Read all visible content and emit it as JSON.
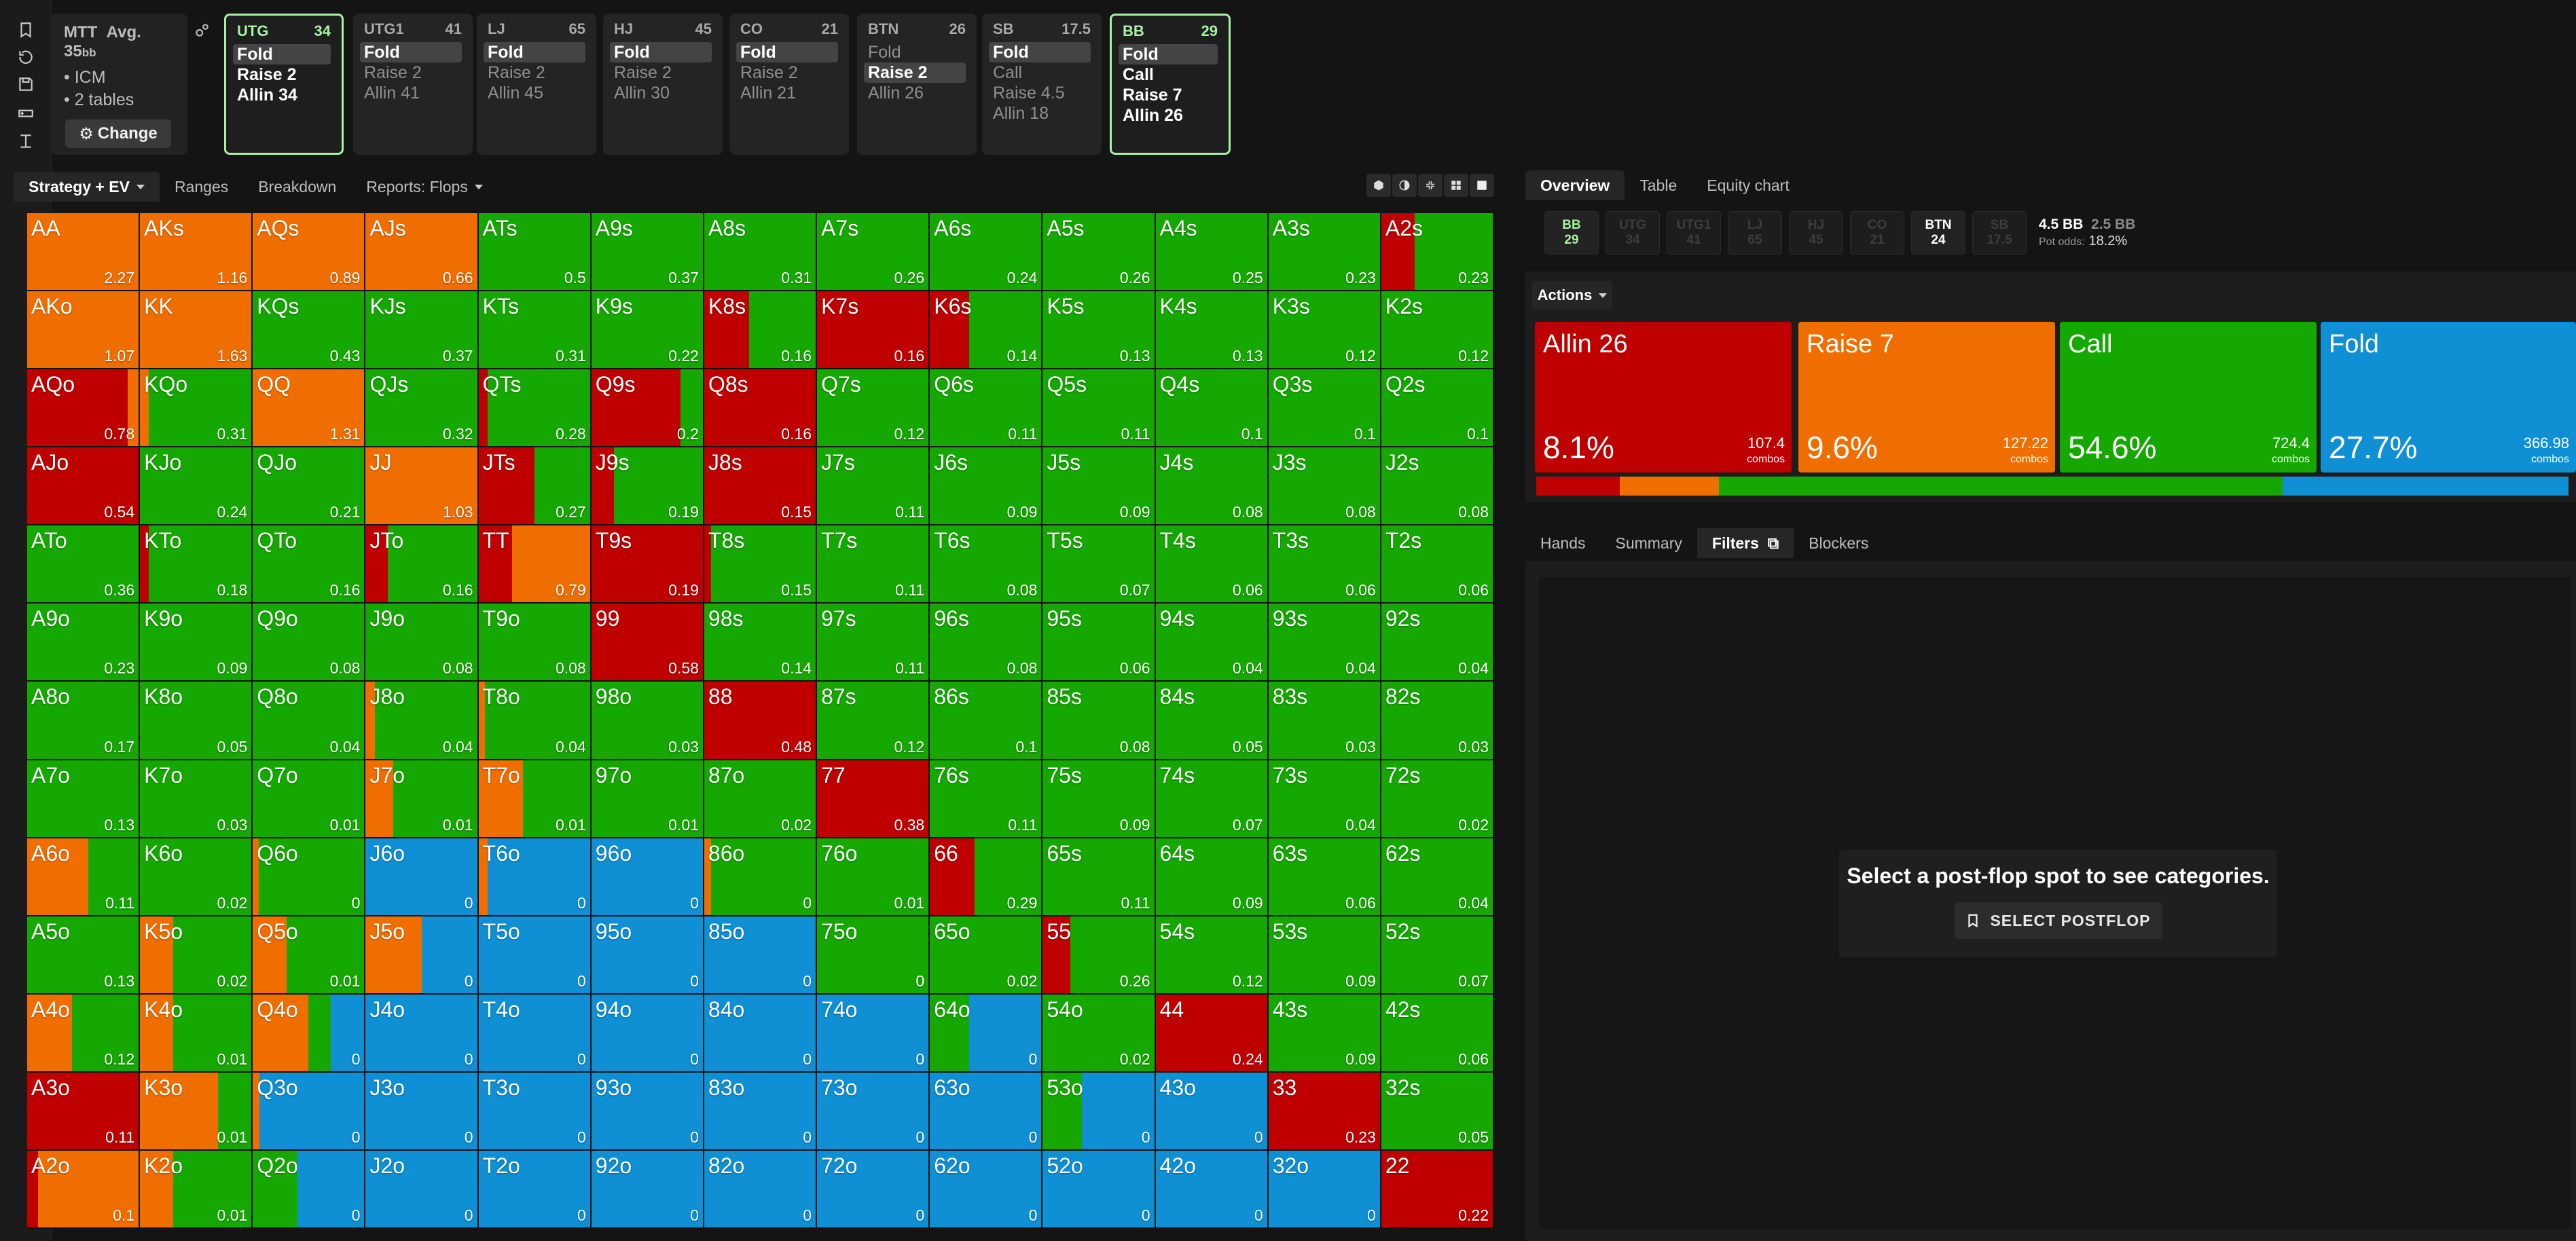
{
  "rail_icons": [
    "bookmark-icon",
    "history-icon",
    "save-icon",
    "gamepad-icon",
    "text-cursor-icon"
  ],
  "info": {
    "format": "MTT",
    "avg_label": "Avg. 35",
    "avg_unit": "bb",
    "items": [
      "ICM",
      "2 tables"
    ],
    "change_label": "Change"
  },
  "positions": [
    {
      "name": "UTG",
      "stack": "34",
      "actions": [
        "Fold",
        "Raise 2",
        "Allin 34"
      ],
      "selected": true
    },
    {
      "name": "UTG1",
      "stack": "41",
      "actions": [
        "Fold",
        "Raise 2",
        "Allin 41"
      ],
      "chosen": "Fold"
    },
    {
      "name": "LJ",
      "stack": "65",
      "actions": [
        "Fold",
        "Raise 2",
        "Allin 45"
      ],
      "chosen": "Fold"
    },
    {
      "name": "HJ",
      "stack": "45",
      "actions": [
        "Fold",
        "Raise 2",
        "Allin 30"
      ],
      "chosen": "Fold"
    },
    {
      "name": "CO",
      "stack": "21",
      "actions": [
        "Fold",
        "Raise 2",
        "Allin 21"
      ],
      "chosen": "Fold"
    },
    {
      "name": "BTN",
      "stack": "26",
      "actions": [
        "Fold",
        "Raise 2",
        "Allin 26"
      ],
      "chosen": "Raise 2"
    },
    {
      "name": "SB",
      "stack": "17.5",
      "actions": [
        "Fold",
        "Call",
        "Raise 4.5",
        "Allin 18"
      ],
      "chosen": "Fold"
    },
    {
      "name": "BB",
      "stack": "29",
      "actions": [
        "Fold",
        "Call",
        "Raise 7",
        "Allin 26"
      ],
      "selected": true
    }
  ],
  "left_tabs": [
    "Strategy + EV",
    "Ranges",
    "Breakdown",
    "Reports: Flops"
  ],
  "colors": {
    "allin": "#bf0000",
    "raise": "#f06d00",
    "call": "#14a800",
    "fold": "#0f8fd4",
    "selected_border": "#a6f3a2"
  },
  "grid": [
    [
      [
        "AA",
        "2.27",
        "O"
      ],
      [
        "AKs",
        "1.16",
        "O"
      ],
      [
        "AQs",
        "0.89",
        "O"
      ],
      [
        "AJs",
        "0.66",
        "O"
      ],
      [
        "ATs",
        "0.5",
        "C"
      ],
      [
        "A9s",
        "0.37",
        "C"
      ],
      [
        "A8s",
        "0.31",
        "C"
      ],
      [
        "A7s",
        "0.26",
        "C"
      ],
      [
        "A6s",
        "0.24",
        "C"
      ],
      [
        "A5s",
        "0.26",
        "C"
      ],
      [
        "A4s",
        "0.25",
        "C"
      ],
      [
        "A3s",
        "0.23",
        "C"
      ],
      [
        "A2s",
        "0.23",
        "R30C70"
      ]
    ],
    [
      [
        "AKo",
        "1.07",
        "O"
      ],
      [
        "KK",
        "1.63",
        "O"
      ],
      [
        "KQs",
        "0.43",
        "C"
      ],
      [
        "KJs",
        "0.37",
        "C"
      ],
      [
        "KTs",
        "0.31",
        "C"
      ],
      [
        "K9s",
        "0.22",
        "C"
      ],
      [
        "K8s",
        "0.16",
        "R40C60"
      ],
      [
        "K7s",
        "0.16",
        "R100"
      ],
      [
        "K6s",
        "0.14",
        "R35C65"
      ],
      [
        "K5s",
        "0.13",
        "C"
      ],
      [
        "K4s",
        "0.13",
        "C"
      ],
      [
        "K3s",
        "0.12",
        "C"
      ],
      [
        "K2s",
        "0.12",
        "C"
      ]
    ],
    [
      [
        "AQo",
        "0.78",
        "R90O10"
      ],
      [
        "KQo",
        "0.31",
        "O8C92"
      ],
      [
        "QQ",
        "1.31",
        "O"
      ],
      [
        "QJs",
        "0.32",
        "C"
      ],
      [
        "QTs",
        "0.28",
        "R8C92"
      ],
      [
        "Q9s",
        "0.2",
        "R80C20"
      ],
      [
        "Q8s",
        "0.16",
        "R100"
      ],
      [
        "Q7s",
        "0.12",
        "C"
      ],
      [
        "Q6s",
        "0.11",
        "C"
      ],
      [
        "Q5s",
        "0.11",
        "C"
      ],
      [
        "Q4s",
        "0.1",
        "C"
      ],
      [
        "Q3s",
        "0.1",
        "C"
      ],
      [
        "Q2s",
        "0.1",
        "C"
      ]
    ],
    [
      [
        "AJo",
        "0.54",
        "R100"
      ],
      [
        "KJo",
        "0.24",
        "C"
      ],
      [
        "QJo",
        "0.21",
        "C"
      ],
      [
        "JJ",
        "1.03",
        "O"
      ],
      [
        "JTs",
        "0.27",
        "R50C50"
      ],
      [
        "J9s",
        "0.19",
        "R20C80"
      ],
      [
        "J8s",
        "0.15",
        "R100"
      ],
      [
        "J7s",
        "0.11",
        "C"
      ],
      [
        "J6s",
        "0.09",
        "C"
      ],
      [
        "J5s",
        "0.09",
        "C"
      ],
      [
        "J4s",
        "0.08",
        "C"
      ],
      [
        "J3s",
        "0.08",
        "C"
      ],
      [
        "J2s",
        "0.08",
        "C"
      ]
    ],
    [
      [
        "ATo",
        "0.36",
        "C"
      ],
      [
        "KTo",
        "0.18",
        "R8C92"
      ],
      [
        "QTo",
        "0.16",
        "C"
      ],
      [
        "JTo",
        "0.16",
        "R20C80"
      ],
      [
        "TT",
        "0.79",
        "R30O70"
      ],
      [
        "T9s",
        "0.19",
        "R100"
      ],
      [
        "T8s",
        "0.15",
        "R6C94"
      ],
      [
        "T7s",
        "0.11",
        "C"
      ],
      [
        "T6s",
        "0.08",
        "C"
      ],
      [
        "T5s",
        "0.07",
        "C"
      ],
      [
        "T4s",
        "0.06",
        "C"
      ],
      [
        "T3s",
        "0.06",
        "C"
      ],
      [
        "T2s",
        "0.06",
        "C"
      ]
    ],
    [
      [
        "A9o",
        "0.23",
        "C"
      ],
      [
        "K9o",
        "0.09",
        "C"
      ],
      [
        "Q9o",
        "0.08",
        "C"
      ],
      [
        "J9o",
        "0.08",
        "C"
      ],
      [
        "T9o",
        "0.08",
        "C"
      ],
      [
        "99",
        "0.58",
        "R100"
      ],
      [
        "98s",
        "0.14",
        "C"
      ],
      [
        "97s",
        "0.11",
        "C"
      ],
      [
        "96s",
        "0.08",
        "C"
      ],
      [
        "95s",
        "0.06",
        "C"
      ],
      [
        "94s",
        "0.04",
        "C"
      ],
      [
        "93s",
        "0.04",
        "C"
      ],
      [
        "92s",
        "0.04",
        "C"
      ]
    ],
    [
      [
        "A8o",
        "0.17",
        "C"
      ],
      [
        "K8o",
        "0.05",
        "C"
      ],
      [
        "Q8o",
        "0.04",
        "C"
      ],
      [
        "J8o",
        "0.04",
        "O8C92"
      ],
      [
        "T8o",
        "0.04",
        "O6C94"
      ],
      [
        "98o",
        "0.03",
        "C"
      ],
      [
        "88",
        "0.48",
        "R100"
      ],
      [
        "87s",
        "0.12",
        "C"
      ],
      [
        "86s",
        "0.1",
        "C"
      ],
      [
        "85s",
        "0.08",
        "C"
      ],
      [
        "84s",
        "0.05",
        "C"
      ],
      [
        "83s",
        "0.03",
        "C"
      ],
      [
        "82s",
        "0.03",
        "C"
      ]
    ],
    [
      [
        "A7o",
        "0.13",
        "C"
      ],
      [
        "K7o",
        "0.03",
        "C"
      ],
      [
        "Q7o",
        "0.01",
        "C"
      ],
      [
        "J7o",
        "0.01",
        "O25C75"
      ],
      [
        "T7o",
        "0.01",
        "O40C60"
      ],
      [
        "97o",
        "0.01",
        "C"
      ],
      [
        "87o",
        "0.02",
        "C"
      ],
      [
        "77",
        "0.38",
        "R100"
      ],
      [
        "76s",
        "0.11",
        "C"
      ],
      [
        "75s",
        "0.09",
        "C"
      ],
      [
        "74s",
        "0.07",
        "C"
      ],
      [
        "73s",
        "0.04",
        "C"
      ],
      [
        "72s",
        "0.02",
        "C"
      ]
    ],
    [
      [
        "A6o",
        "0.11",
        "O55C45"
      ],
      [
        "K6o",
        "0.02",
        "C"
      ],
      [
        "Q6o",
        "0",
        "O5C95"
      ],
      [
        "J6o",
        "0",
        "F"
      ],
      [
        "T6o",
        "0",
        "O8F92"
      ],
      [
        "96o",
        "0",
        "F"
      ],
      [
        "86o",
        "0",
        "O6C94"
      ],
      [
        "76o",
        "0.01",
        "C"
      ],
      [
        "66",
        "0.29",
        "R40C60"
      ],
      [
        "65s",
        "0.11",
        "C"
      ],
      [
        "64s",
        "0.09",
        "C"
      ],
      [
        "63s",
        "0.06",
        "C"
      ],
      [
        "62s",
        "0.04",
        "C"
      ]
    ],
    [
      [
        "A5o",
        "0.13",
        "C"
      ],
      [
        "K5o",
        "0.02",
        "O30C70"
      ],
      [
        "Q5o",
        "0.01",
        "O30C70"
      ],
      [
        "J5o",
        "0",
        "O50F50"
      ],
      [
        "T5o",
        "0",
        "F"
      ],
      [
        "95o",
        "0",
        "F"
      ],
      [
        "85o",
        "0",
        "F"
      ],
      [
        "75o",
        "0",
        "C"
      ],
      [
        "65o",
        "0.02",
        "C"
      ],
      [
        "55",
        "0.26",
        "R25C75"
      ],
      [
        "54s",
        "0.12",
        "C"
      ],
      [
        "53s",
        "0.09",
        "C"
      ],
      [
        "52s",
        "0.07",
        "C"
      ]
    ],
    [
      [
        "A4o",
        "0.12",
        "O40C60"
      ],
      [
        "K4o",
        "0.01",
        "O30C70"
      ],
      [
        "Q4o",
        "0",
        "O50C20F30"
      ],
      [
        "J4o",
        "0",
        "F"
      ],
      [
        "T4o",
        "0",
        "F"
      ],
      [
        "94o",
        "0",
        "F"
      ],
      [
        "84o",
        "0",
        "F"
      ],
      [
        "74o",
        "0",
        "F"
      ],
      [
        "64o",
        "0",
        "C35F65"
      ],
      [
        "54o",
        "0.02",
        "C"
      ],
      [
        "44",
        "0.24",
        "R100"
      ],
      [
        "43s",
        "0.09",
        "C"
      ],
      [
        "42s",
        "0.06",
        "C"
      ]
    ],
    [
      [
        "A3o",
        "0.11",
        "R100"
      ],
      [
        "K3o",
        "0.01",
        "O70C30"
      ],
      [
        "Q3o",
        "0",
        "O6F94"
      ],
      [
        "J3o",
        "0",
        "F"
      ],
      [
        "T3o",
        "0",
        "F"
      ],
      [
        "93o",
        "0",
        "F"
      ],
      [
        "83o",
        "0",
        "F"
      ],
      [
        "73o",
        "0",
        "F"
      ],
      [
        "63o",
        "0",
        "F"
      ],
      [
        "53o",
        "0",
        "C35F65"
      ],
      [
        "43o",
        "0",
        "F"
      ],
      [
        "33",
        "0.23",
        "R100"
      ],
      [
        "32s",
        "0.05",
        "C"
      ]
    ],
    [
      [
        "A2o",
        "0.1",
        "R10O90"
      ],
      [
        "K2o",
        "0.01",
        "O30C70"
      ],
      [
        "Q2o",
        "0",
        "C40F60"
      ],
      [
        "J2o",
        "0",
        "F"
      ],
      [
        "T2o",
        "0",
        "F"
      ],
      [
        "92o",
        "0",
        "F"
      ],
      [
        "82o",
        "0",
        "F"
      ],
      [
        "72o",
        "0",
        "F"
      ],
      [
        "62o",
        "0",
        "F"
      ],
      [
        "52o",
        "0",
        "F"
      ],
      [
        "42o",
        "0",
        "F"
      ],
      [
        "32o",
        "0",
        "F"
      ],
      [
        "22",
        "0.22",
        "R100"
      ]
    ]
  ],
  "right_tabs": [
    "Overview",
    "Table",
    "Equity chart"
  ],
  "spots": [
    {
      "n": "BB",
      "v": "29",
      "s": "hi"
    },
    {
      "n": "UTG",
      "v": "34"
    },
    {
      "n": "UTG1",
      "v": "41"
    },
    {
      "n": "LJ",
      "v": "65"
    },
    {
      "n": "HJ",
      "v": "45"
    },
    {
      "n": "CO",
      "v": "21"
    },
    {
      "n": "BTN",
      "v": "24",
      "s": "btn"
    },
    {
      "n": "SB",
      "v": "17.5"
    }
  ],
  "pot": {
    "bb": "4.5 BB",
    "bb2": "2.5 BB",
    "odds_label": "Pot odds:",
    "odds": "18.2%"
  },
  "actions_label": "Actions",
  "action_cards": [
    {
      "name": "Allin 26",
      "pct": "8.1%",
      "combos": "107.4",
      "color": "#bf0000",
      "frac": 0.081
    },
    {
      "name": "Raise 7",
      "pct": "9.6%",
      "combos": "127.22",
      "color": "#f06d00",
      "frac": 0.096
    },
    {
      "name": "Call",
      "pct": "54.6%",
      "combos": "724.4",
      "color": "#14a800",
      "frac": 0.546
    },
    {
      "name": "Fold",
      "pct": "27.7%",
      "combos": "366.98",
      "color": "#0f8fd4",
      "frac": 0.277
    }
  ],
  "combos_label": "combos",
  "bottom_tabs": [
    "Hands",
    "Summary",
    "Filters",
    "Blockers"
  ],
  "empty_msg": "Select a post-flop spot to see categories.",
  "select_postflop": "SELECT POSTFLOP"
}
